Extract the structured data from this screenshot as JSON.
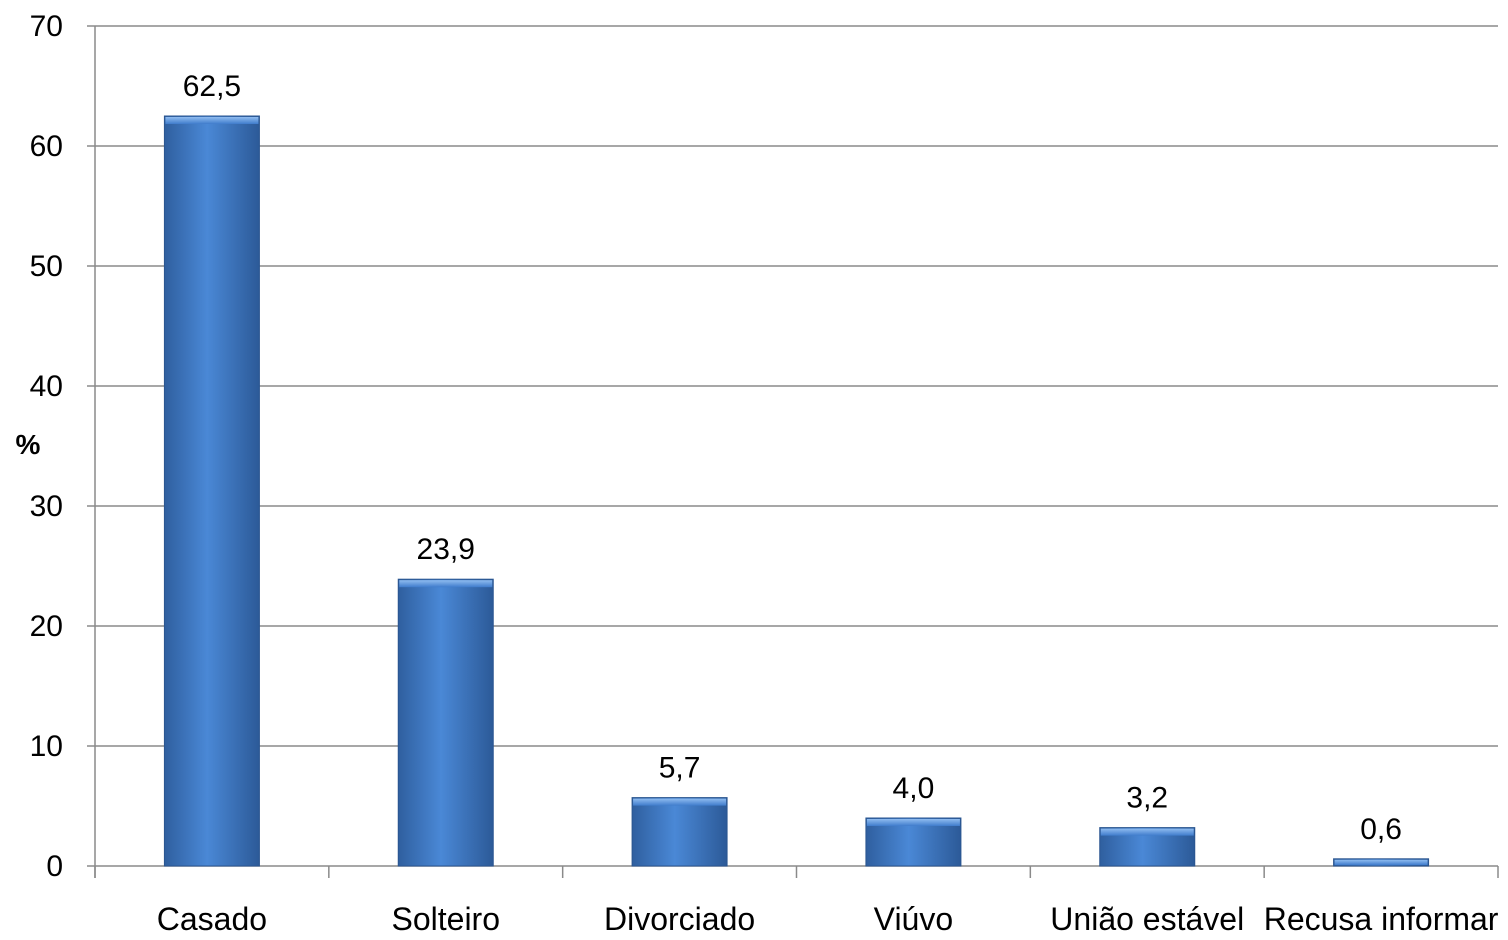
{
  "chart_data": {
    "type": "bar",
    "categories": [
      "Casado",
      "Solteiro",
      "Divorciado",
      "Viúvo",
      "União estável",
      "Recusa informar"
    ],
    "values": [
      62.5,
      23.9,
      5.7,
      4.0,
      3.2,
      0.6
    ],
    "data_labels": [
      "62,5",
      "23,9",
      "5,7",
      "4,0",
      "3,2",
      "0,6"
    ],
    "title": "",
    "xlabel": "",
    "ylabel": "%",
    "ylim": [
      0,
      70
    ],
    "yticks": [
      0,
      10,
      20,
      30,
      40,
      50,
      60,
      70
    ],
    "grid": true,
    "legend": false,
    "bar_color": "#3a73c2"
  }
}
